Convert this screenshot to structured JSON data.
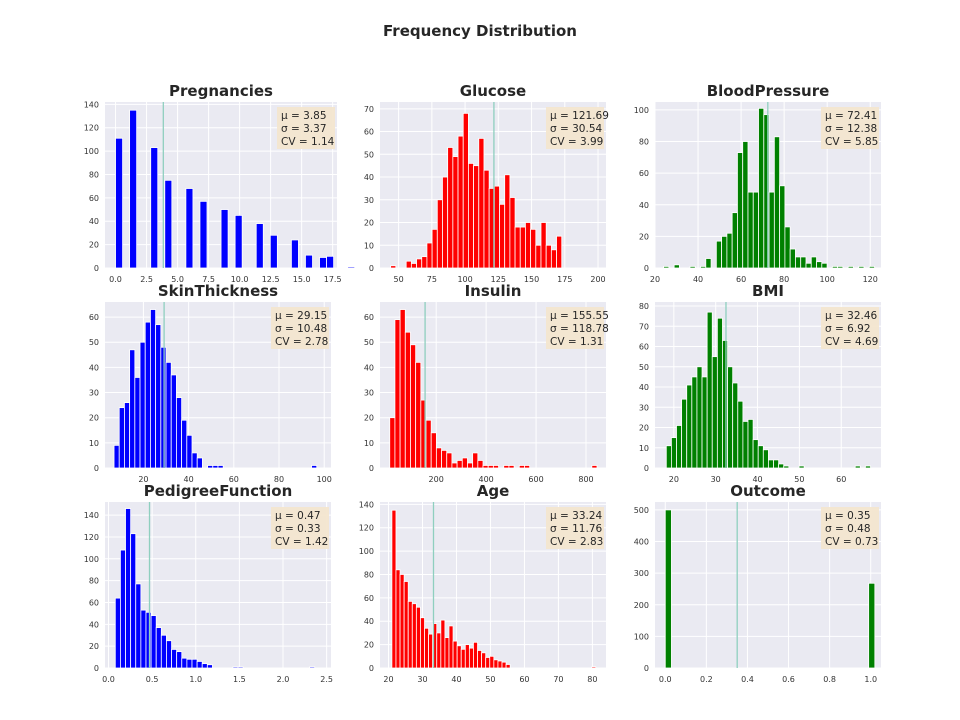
{
  "figure": {
    "title": "Frequency Distribution"
  },
  "colors": {
    "plot_bg": "#eaeaf2",
    "grid": "#ffffff",
    "mean_line": "#8fcfbf",
    "stats_box": "#f3e6cf",
    "text": "#262626"
  },
  "chart_data": [
    {
      "type": "histogram",
      "title": "Pregnancies",
      "color": "#0000ff",
      "xlim": [
        -0.85,
        17.85
      ],
      "ylim": [
        0,
        142
      ],
      "xticks": [
        0,
        2.5,
        5,
        7.5,
        10,
        12.5,
        15,
        17.5
      ],
      "xtick_labels": [
        "0.0",
        "2.5",
        "5.0",
        "7.5",
        "10.0",
        "12.5",
        "15.0",
        "17.5"
      ],
      "yticks": [
        0,
        20,
        40,
        60,
        80,
        100,
        120,
        140
      ],
      "bin_start": 0,
      "bin_width": 0.567,
      "counts": [
        111,
        0,
        135,
        0,
        0,
        103,
        0,
        75,
        0,
        0,
        68,
        0,
        57,
        0,
        0,
        50,
        0,
        45,
        0,
        0,
        38,
        0,
        28,
        0,
        0,
        24,
        0,
        11,
        0,
        9,
        10,
        0,
        0,
        1,
        0,
        0,
        0,
        0,
        0,
        1
      ],
      "mean": 3.85,
      "stats": [
        "$\\mu=3.85$",
        "$\\sigma=3.37$",
        "$CV=1.14$"
      ]
    },
    {
      "type": "histogram",
      "title": "Glucose",
      "color": "#ff0000",
      "xlim": [
        36,
        206
      ],
      "ylim": [
        0,
        73
      ],
      "xticks": [
        50,
        75,
        100,
        125,
        150,
        175,
        200
      ],
      "xtick_labels": [
        "50",
        "75",
        "100",
        "125",
        "150",
        "175",
        "200"
      ],
      "yticks": [
        0,
        10,
        20,
        30,
        40,
        50,
        60,
        70
      ],
      "bin_start": 44,
      "bin_width": 3.9,
      "counts": [
        1,
        0,
        0,
        3,
        2,
        4,
        5,
        11,
        17,
        30,
        40,
        53,
        49,
        58,
        68,
        46,
        45,
        57,
        43,
        35,
        36,
        28,
        41,
        31,
        18,
        18,
        20,
        17,
        10,
        20,
        10,
        8,
        14
      ],
      "mean": 121.69,
      "stats": [
        "$\\mu=121.69$",
        "$\\sigma=30.54$",
        "$CV=3.99$"
      ]
    },
    {
      "type": "histogram",
      "title": "BloodPressure",
      "color": "#008000",
      "xlim": [
        20,
        125
      ],
      "ylim": [
        0,
        105
      ],
      "xticks": [
        20,
        40,
        60,
        80,
        100,
        120
      ],
      "xtick_labels": [
        "20",
        "40",
        "60",
        "80",
        "100",
        "120"
      ],
      "yticks": [
        0,
        20,
        40,
        60,
        80,
        100
      ],
      "bin_start": 24,
      "bin_width": 2.45,
      "counts": [
        1,
        0,
        2,
        0,
        0,
        1,
        0,
        1,
        6,
        0,
        17,
        20,
        22,
        35,
        73,
        80,
        48,
        48,
        101,
        97,
        48,
        83,
        52,
        26,
        12,
        7,
        7,
        3,
        7,
        4,
        3,
        0,
        1,
        1,
        0,
        1,
        0,
        1,
        0,
        1
      ],
      "mean": 72.41,
      "stats": [
        "$\\mu=72.41$",
        "$\\sigma=12.38$",
        "$CV=5.85$"
      ]
    },
    {
      "type": "histogram",
      "title": "SkinThickness",
      "color": "#0000ff",
      "xlim": [
        3,
        103
      ],
      "ylim": [
        0,
        66
      ],
      "xticks": [
        20,
        40,
        60,
        80,
        100
      ],
      "xtick_labels": [
        "20",
        "40",
        "60",
        "80",
        "100"
      ],
      "yticks": [
        0,
        10,
        20,
        30,
        40,
        50,
        60
      ],
      "bin_start": 7,
      "bin_width": 2.3,
      "counts": [
        9,
        24,
        26,
        47,
        36,
        50,
        58,
        63,
        57,
        48,
        42,
        37,
        28,
        19,
        13,
        6,
        4,
        0,
        1,
        1,
        1,
        0,
        0,
        0,
        0,
        0,
        0,
        0,
        0,
        0,
        0,
        0,
        0,
        0,
        0,
        0,
        0,
        0,
        1
      ],
      "mean": 29.15,
      "stats": [
        "$\\mu=29.15$",
        "$\\sigma=10.48$",
        "$CV=2.78$"
      ]
    },
    {
      "type": "histogram",
      "title": "Insulin",
      "color": "#ff0000",
      "xlim": [
        -25,
        880
      ],
      "ylim": [
        0,
        66
      ],
      "xticks": [
        200,
        400,
        600,
        800
      ],
      "xtick_labels": [
        "200",
        "400",
        "600",
        "800"
      ],
      "yticks": [
        0,
        10,
        20,
        30,
        40,
        50,
        60
      ],
      "bin_start": 14,
      "bin_width": 20.75,
      "counts": [
        20,
        59,
        63,
        54,
        49,
        42,
        27,
        19,
        14,
        8,
        7,
        6,
        2,
        3,
        4,
        2,
        6,
        3,
        1,
        1,
        1,
        0,
        1,
        1,
        0,
        1,
        1,
        0,
        0,
        0,
        0,
        0,
        0,
        0,
        0,
        0,
        0,
        0,
        0,
        1
      ],
      "mean": 155.55,
      "stats": [
        "$\\mu=155.55$",
        "$\\sigma=118.78$",
        "$CV=1.31$"
      ]
    },
    {
      "type": "histogram",
      "title": "BMI",
      "color": "#008000",
      "xlim": [
        15.5,
        69.5
      ],
      "ylim": [
        0,
        82
      ],
      "xticks": [
        20,
        30,
        40,
        50,
        60
      ],
      "xtick_labels": [
        "20",
        "30",
        "40",
        "50",
        "60"
      ],
      "yticks": [
        0,
        10,
        20,
        30,
        40,
        50,
        60,
        70,
        80
      ],
      "bin_start": 18.2,
      "bin_width": 1.22,
      "counts": [
        11,
        15,
        21,
        34,
        41,
        45,
        50,
        45,
        77,
        55,
        74,
        63,
        50,
        42,
        33,
        23,
        24,
        14,
        11,
        9,
        4,
        4,
        2,
        1,
        0,
        0,
        1,
        0,
        0,
        0,
        0,
        0,
        0,
        0,
        0,
        0,
        0,
        1,
        0,
        1
      ],
      "mean": 32.46,
      "stats": [
        "$\\mu=32.46$",
        "$\\sigma=6.92$",
        "$CV=4.69$"
      ]
    },
    {
      "type": "histogram",
      "title": "PedigreeFunction",
      "color": "#0000ff",
      "xlim": [
        -0.04,
        2.55
      ],
      "ylim": [
        0,
        152
      ],
      "xticks": [
        0,
        0.5,
        1,
        1.5,
        2,
        2.5
      ],
      "xtick_labels": [
        "0.0",
        "0.5",
        "1.0",
        "1.5",
        "2.0",
        "2.5"
      ],
      "yticks": [
        0,
        20,
        40,
        60,
        80,
        100,
        120,
        140
      ],
      "bin_start": 0.078,
      "bin_width": 0.0586,
      "counts": [
        64,
        108,
        146,
        123,
        77,
        53,
        51,
        48,
        37,
        30,
        25,
        17,
        15,
        9,
        8,
        8,
        6,
        4,
        3,
        0,
        0,
        0,
        0,
        1,
        1,
        0,
        0,
        0,
        0,
        0,
        0,
        0,
        0,
        0,
        0,
        0,
        0,
        0,
        1
      ],
      "mean": 0.47,
      "stats": [
        "$\\mu=0.47$",
        "$\\sigma=0.33$",
        "$CV=1.42$"
      ]
    },
    {
      "type": "histogram",
      "title": "Age",
      "color": "#ff0000",
      "xlim": [
        17.5,
        84
      ],
      "ylim": [
        0,
        142
      ],
      "xticks": [
        20,
        30,
        40,
        50,
        60,
        70,
        80
      ],
      "xtick_labels": [
        "20",
        "30",
        "40",
        "50",
        "60",
        "70",
        "80"
      ],
      "yticks": [
        0,
        20,
        40,
        60,
        80,
        100,
        120,
        140
      ],
      "bin_start": 21,
      "bin_width": 1.2,
      "counts": [
        135,
        84,
        80,
        74,
        57,
        55,
        52,
        43,
        34,
        29,
        38,
        30,
        41,
        26,
        36,
        23,
        19,
        16,
        20,
        17,
        22,
        15,
        13,
        9,
        10,
        7,
        6,
        5,
        3,
        0,
        0,
        0,
        0,
        0,
        0,
        0,
        0,
        0,
        0,
        0,
        0,
        0,
        0,
        0,
        0,
        0,
        0,
        0,
        0,
        1
      ],
      "mean": 33.24,
      "stats": [
        "$\\mu=33.24$",
        "$\\sigma=11.76$",
        "$CV=2.83$"
      ]
    },
    {
      "type": "histogram",
      "title": "Outcome",
      "color": "#008000",
      "xlim": [
        -0.05,
        1.05
      ],
      "ylim": [
        0,
        525
      ],
      "xticks": [
        0,
        0.2,
        0.4,
        0.6,
        0.8,
        1
      ],
      "xtick_labels": [
        "0.0",
        "0.2",
        "0.4",
        "0.6",
        "0.8",
        "1.0"
      ],
      "yticks": [
        0,
        100,
        200,
        300,
        400,
        500
      ],
      "bin_start": 0,
      "bin_width": 0.03,
      "counts": [
        500,
        0,
        0,
        0,
        0,
        0,
        0,
        0,
        0,
        0,
        0,
        0,
        0,
        0,
        0,
        0,
        0,
        0,
        0,
        0,
        0,
        0,
        0,
        0,
        0,
        0,
        0,
        0,
        0,
        0,
        0,
        0,
        0,
        268
      ],
      "mean": 0.35,
      "stats": [
        "$\\mu=0.35$",
        "$\\sigma=0.48$",
        "$CV=0.73$"
      ]
    }
  ]
}
